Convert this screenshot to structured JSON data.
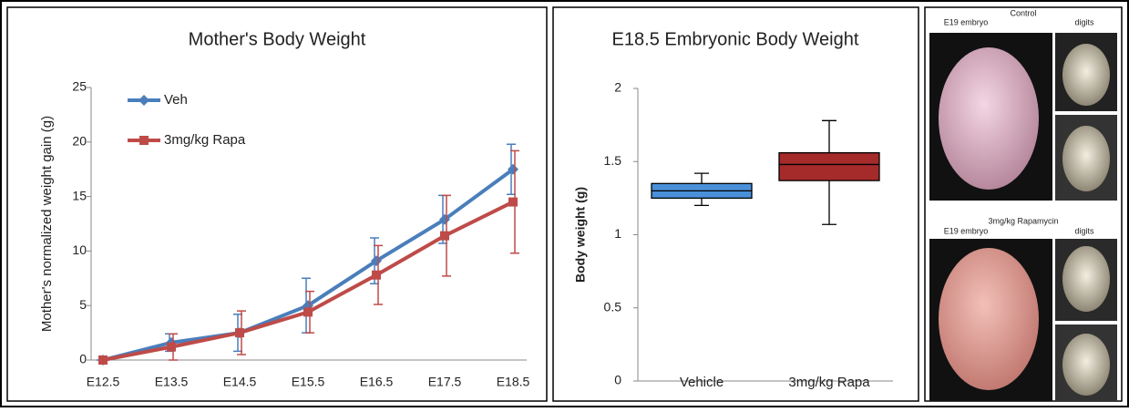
{
  "chart_data": [
    {
      "type": "line",
      "title": "Mother's Body Weight",
      "ylabel": "Mother's normalized weight gain (g)",
      "categories": [
        "E12.5",
        "E13.5",
        "E14.5",
        "E15.5",
        "E16.5",
        "E17.5",
        "E18.5"
      ],
      "series": [
        {
          "name": "Veh",
          "color": "#4a7ebb",
          "marker": "diamond",
          "values": [
            0,
            1.6,
            2.5,
            5.0,
            9.1,
            12.9,
            17.5
          ],
          "errors": [
            0,
            0.8,
            1.7,
            2.5,
            2.1,
            2.2,
            2.3
          ]
        },
        {
          "name": "3mg/kg Rapa",
          "color": "#be4b48",
          "marker": "square",
          "values": [
            0,
            1.2,
            2.5,
            4.4,
            7.8,
            11.4,
            14.5
          ],
          "errors": [
            0,
            1.2,
            2.0,
            1.9,
            2.7,
            3.7,
            4.7
          ]
        }
      ],
      "ylim": [
        0,
        25
      ],
      "yticks": [
        0,
        5,
        10,
        15,
        20,
        25
      ],
      "legend": "upper left"
    },
    {
      "type": "box",
      "title": "E18.5 Embryonic Body Weight",
      "ylabel": "Body weight (g)",
      "categories": [
        "Vehicle",
        "3mg/kg Rapa"
      ],
      "boxes": [
        {
          "color": "#4a90d9",
          "min": 1.2,
          "q1": 1.25,
          "median": 1.3,
          "q3": 1.35,
          "max": 1.42
        },
        {
          "color": "#a52a2a",
          "min": 1.07,
          "q1": 1.37,
          "median": 1.48,
          "q3": 1.56,
          "max": 1.78
        }
      ],
      "ylim": [
        0,
        2
      ],
      "yticks": [
        0,
        0.5,
        1,
        1.5,
        2
      ]
    }
  ],
  "photos": {
    "control": {
      "title": "Control",
      "embryo": "E19 embryo",
      "digits": "digits"
    },
    "rapamycin": {
      "title": "3mg/kg Rapamycin",
      "embryo": "E19 embryo",
      "digits": "digits"
    }
  }
}
